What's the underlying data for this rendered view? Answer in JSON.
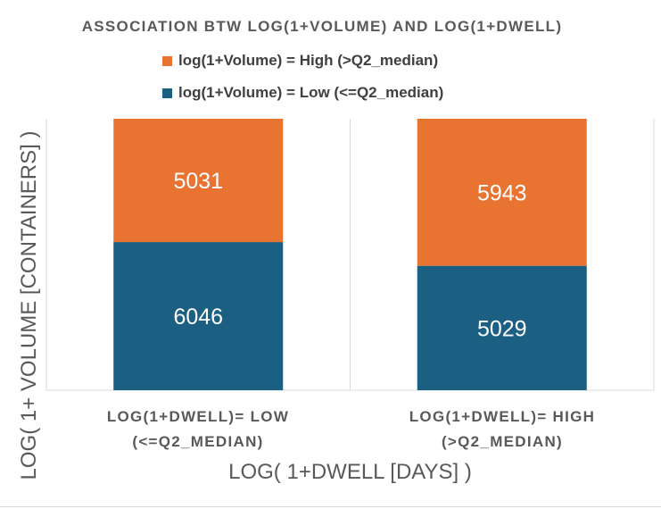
{
  "chart_data": {
    "type": "bar",
    "stacked": true,
    "percent_stacked": true,
    "title": "ASSOCIATION BTW LOG(1+VOLUME) AND LOG(1+DWELL)",
    "xlabel": "LOG( 1+DWELL [DAYS] )",
    "ylabel": "LOG( 1+ VOLUME [CONTAINERS] )",
    "categories": [
      [
        "LOG(1+DWELL)= LOW",
        "(<=Q2_MEDIAN)"
      ],
      [
        "LOG(1+DWELL)= HIGH",
        "(>Q2_MEDIAN)"
      ]
    ],
    "series": [
      {
        "name": "log(1+Volume) = Low (<=Q2_median)",
        "color": "#1b5f82",
        "values": [
          6046,
          5029
        ]
      },
      {
        "name": "log(1+Volume) = High (>Q2_median)",
        "color": "#e97432",
        "values": [
          5031,
          5943
        ]
      }
    ],
    "legend_order": [
      1,
      0
    ],
    "legend_position": "top",
    "grid": false
  }
}
